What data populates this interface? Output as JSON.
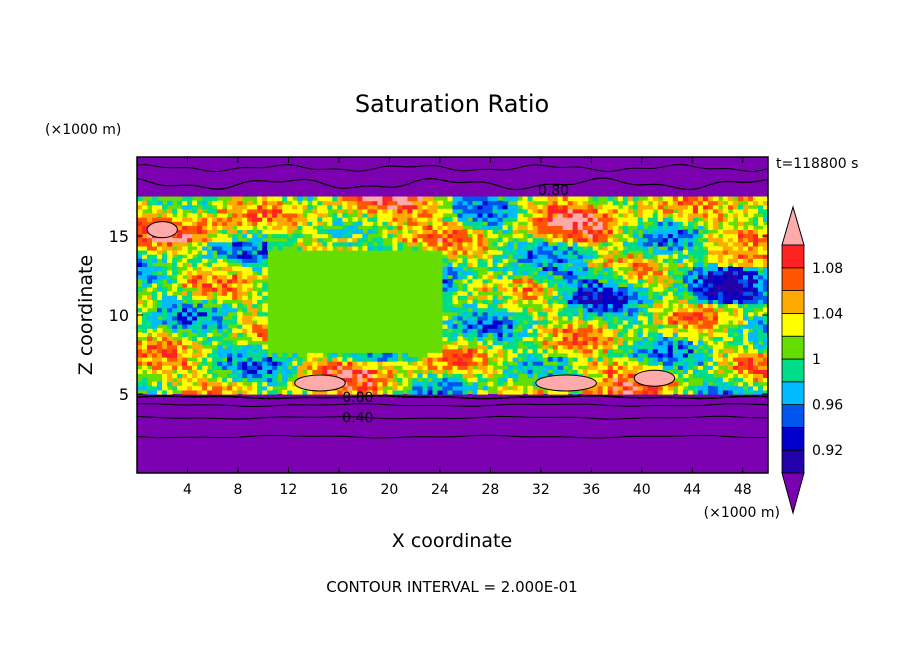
{
  "chart_data": {
    "type": "heatmap",
    "title": "Saturation Ratio",
    "xlabel": "X coordinate",
    "ylabel": "Z coordinate",
    "x_unit": "(×1000 m)",
    "z_unit": "(×1000 m)",
    "time_label": "t=118800 s",
    "footer": "CONTOUR INTERVAL = 2.000E-01",
    "xlim": [
      0,
      50
    ],
    "zlim": [
      0,
      20
    ],
    "x_ticks": [
      4,
      8,
      12,
      16,
      20,
      24,
      28,
      32,
      36,
      40,
      44,
      48
    ],
    "z_ticks": [
      5,
      10,
      15
    ],
    "colorbar": {
      "levels": [
        0.9,
        0.92,
        0.94,
        0.96,
        0.98,
        1.0,
        1.02,
        1.04,
        1.06,
        1.08,
        1.1
      ],
      "labels": [
        "0.92",
        "0.96",
        "1",
        "1.04",
        "1.08"
      ],
      "label_values": [
        0.92,
        0.96,
        1.0,
        1.04,
        1.08
      ],
      "colors": [
        "#7b00b0",
        "#2200aa",
        "#0000cc",
        "#0055ee",
        "#00bbff",
        "#00dd88",
        "#66dd00",
        "#ffff00",
        "#ffaa00",
        "#ff5500",
        "#ff2222",
        "#ffaaaa"
      ]
    },
    "contour_labels": [
      {
        "text": "0.80",
        "x": 33,
        "z": 17.9
      },
      {
        "text": "0.80",
        "x": 17.5,
        "z": 4.8
      },
      {
        "text": "0.40",
        "x": 17.5,
        "z": 3.5
      }
    ],
    "field": {
      "background": "#7b00b0",
      "moist_layer_z": [
        5,
        17.5
      ],
      "upper_line_z": [
        19.3,
        18.3
      ],
      "lower_lines_z": [
        4.8,
        4.3,
        3.5,
        2.3
      ]
    }
  }
}
